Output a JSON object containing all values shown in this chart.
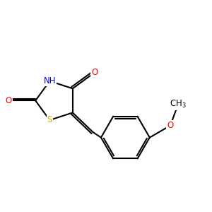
{
  "background_color": "#ffffff",
  "atom_colors": {
    "C": "#000000",
    "N": "#0000cd",
    "O": "#ff0000",
    "S": "#ccaa00",
    "H": "#000000"
  },
  "figsize": [
    3.0,
    3.0
  ],
  "dpi": 100,
  "bond_lw": 1.5,
  "font_size": 8.5
}
